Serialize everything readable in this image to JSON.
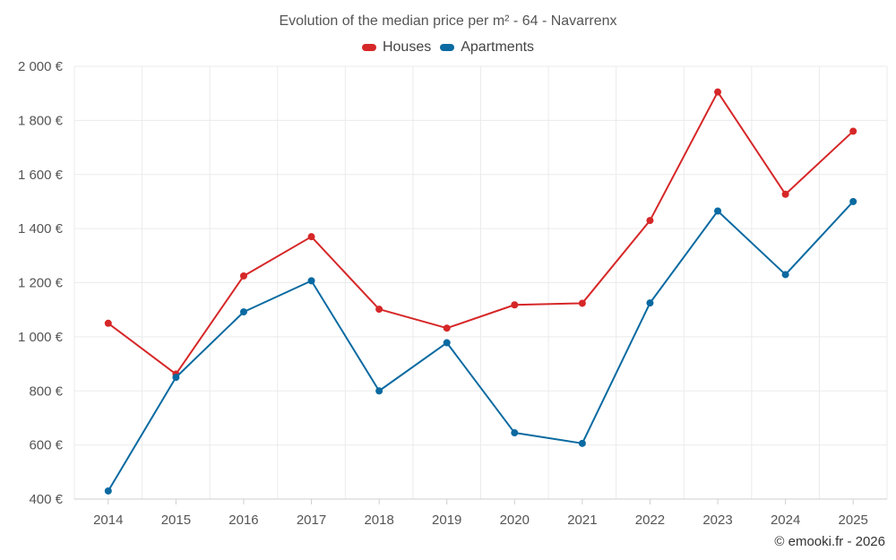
{
  "chart_data": {
    "type": "line",
    "title": "Evolution of the median price per m² - 64 - Navarrenx",
    "categories": [
      "2014",
      "2015",
      "2016",
      "2017",
      "2018",
      "2019",
      "2020",
      "2021",
      "2022",
      "2023",
      "2024",
      "2025"
    ],
    "series": [
      {
        "name": "Houses",
        "color": "#d62728",
        "values": [
          1050,
          862,
          1225,
          1370,
          1102,
          1032,
          1118,
          1124,
          1430,
          1905,
          1527,
          1760
        ]
      },
      {
        "name": "Apartments",
        "color": "#0a6aa1",
        "values": [
          430,
          850,
          1092,
          1207,
          800,
          978,
          645,
          606,
          1125,
          1465,
          1230,
          1500
        ]
      }
    ],
    "yticks": [
      {
        "value": 400,
        "label": "400 €"
      },
      {
        "value": 600,
        "label": "600 €"
      },
      {
        "value": 800,
        "label": "800 €"
      },
      {
        "value": 1000,
        "label": "1 000 €"
      },
      {
        "value": 1200,
        "label": "1 200 €"
      },
      {
        "value": 1400,
        "label": "1 400 €"
      },
      {
        "value": 1600,
        "label": "1 600 €"
      },
      {
        "value": 1800,
        "label": "1 800 €"
      },
      {
        "value": 2000,
        "label": "2 000 €"
      }
    ],
    "ylim": [
      400,
      2000
    ],
    "xlabel": "",
    "ylabel": "",
    "grid": true,
    "legend_position": "top-center",
    "credit": "© emooki.fr - 2026"
  }
}
